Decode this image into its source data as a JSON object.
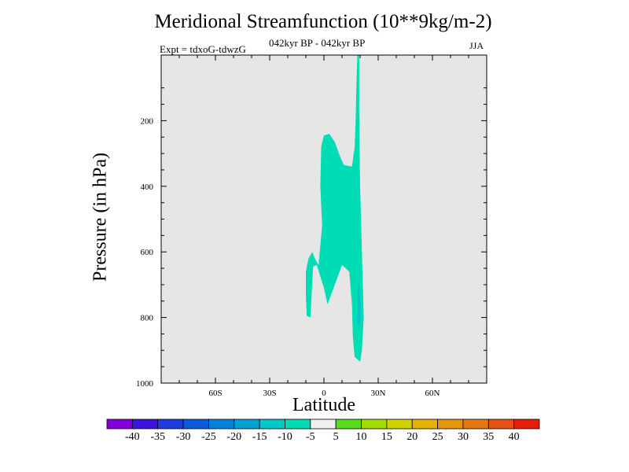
{
  "colors": {
    "plot_background": "#e6e6e6",
    "contour_-10_-5": "#00dcb4",
    "contour_-5_0": "#00c8c8"
  },
  "chart_data": {
    "type": "contour",
    "title": "Meridional Streamfunction (10**9kg/m-2)",
    "subtitle_left": "Expt = tdxoG-tdwzG",
    "subtitle_center": "042kyr BP - 042kyr BP",
    "subtitle_right": "JJA",
    "xlabel": "Latitude",
    "ylabel": "Pressure (in hPa)",
    "xlim": [
      -90,
      90
    ],
    "ylim": [
      1000,
      0
    ],
    "x_ticks": [
      -60,
      -30,
      0,
      30,
      60
    ],
    "x_tick_labels": [
      "60S",
      "30S",
      "0",
      "30N",
      "60N"
    ],
    "y_ticks": [
      200,
      400,
      600,
      800,
      1000
    ],
    "y_tick_labels": [
      "200",
      "400",
      "600",
      "800",
      "1000"
    ],
    "grid": false,
    "colorbar": {
      "placement": "bottom",
      "levels": [
        -40,
        -35,
        -30,
        -25,
        -20,
        -15,
        -10,
        -5,
        5,
        10,
        15,
        20,
        25,
        30,
        35,
        40
      ],
      "labels": [
        "-40",
        "-35",
        "-30",
        "-25",
        "-20",
        "-15",
        "-10",
        "-5",
        "5",
        "10",
        "15",
        "20",
        "25",
        "30",
        "35",
        "40"
      ],
      "colors": [
        "#8200dc",
        "#3c14dc",
        "#1e3cdc",
        "#0a5adc",
        "#0082dc",
        "#00a0d2",
        "#00c8c8",
        "#00dcb4",
        "#f0f0f0",
        "#5adc1e",
        "#a0dc00",
        "#d2d200",
        "#e6b400",
        "#e6960a",
        "#e67814",
        "#e65014",
        "#e61e0a"
      ]
    },
    "regions": [
      {
        "level_range": [
          -10,
          -5
        ],
        "color": "#00dcb4",
        "polygon": [
          [
            18.5,
            0
          ],
          [
            19.5,
            0
          ],
          [
            19.5,
            160
          ],
          [
            20,
            400
          ],
          [
            21,
            600
          ],
          [
            22,
            800
          ],
          [
            21,
            900
          ],
          [
            20,
            935
          ],
          [
            17,
            920
          ],
          [
            16,
            860
          ],
          [
            15.5,
            760
          ],
          [
            14,
            660
          ],
          [
            10,
            640
          ],
          [
            6,
            700
          ],
          [
            2,
            760
          ],
          [
            0,
            710
          ],
          [
            -4,
            640
          ],
          [
            -6,
            645
          ],
          [
            -7.5,
            800
          ],
          [
            -9.5,
            795
          ],
          [
            -10,
            730
          ],
          [
            -10,
            660
          ],
          [
            -8.5,
            620
          ],
          [
            -6.5,
            600
          ],
          [
            -5,
            620
          ],
          [
            -3,
            640
          ],
          [
            -1,
            520
          ],
          [
            -2,
            400
          ],
          [
            -1.5,
            280
          ],
          [
            0,
            245
          ],
          [
            3,
            240
          ],
          [
            6,
            265
          ],
          [
            9,
            310
          ],
          [
            11,
            335
          ],
          [
            15.5,
            340
          ],
          [
            17,
            280
          ],
          [
            17.5,
            200
          ],
          [
            18,
            80
          ]
        ]
      },
      {
        "level_range": [
          -5,
          0
        ],
        "color": "#00c8c8",
        "polygon": [
          [
            18.5,
            700
          ],
          [
            19.5,
            700
          ],
          [
            20.5,
            790
          ],
          [
            19.5,
            840
          ],
          [
            18.5,
            800
          ]
        ]
      }
    ]
  }
}
